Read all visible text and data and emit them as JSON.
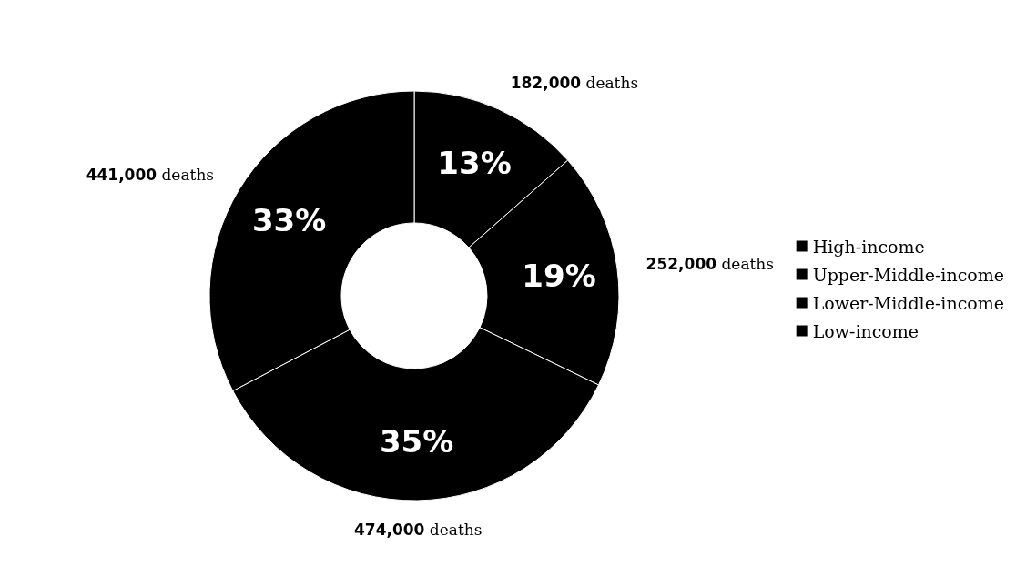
{
  "chart_data": {
    "type": "donut",
    "categories": [
      "High-income",
      "Upper-Middle-income",
      "Lower-Middle-income",
      "Low-income"
    ],
    "values": [
      182000,
      252000,
      474000,
      441000
    ],
    "colors": [
      "#000000",
      "#000000",
      "#000000",
      "#000000"
    ],
    "value_labels": [
      "182,000 deaths",
      "252,000 deaths",
      "474,000 deaths",
      "441,000 deaths"
    ],
    "annotations": [
      {
        "text": "13%",
        "x": "High-income"
      },
      {
        "text": "19%",
        "x": "Upper-Middle-income"
      },
      {
        "text": "35%",
        "x": "Lower-Middle-income"
      },
      {
        "text": "33%",
        "x": "Low-income"
      }
    ],
    "legend": "right"
  }
}
